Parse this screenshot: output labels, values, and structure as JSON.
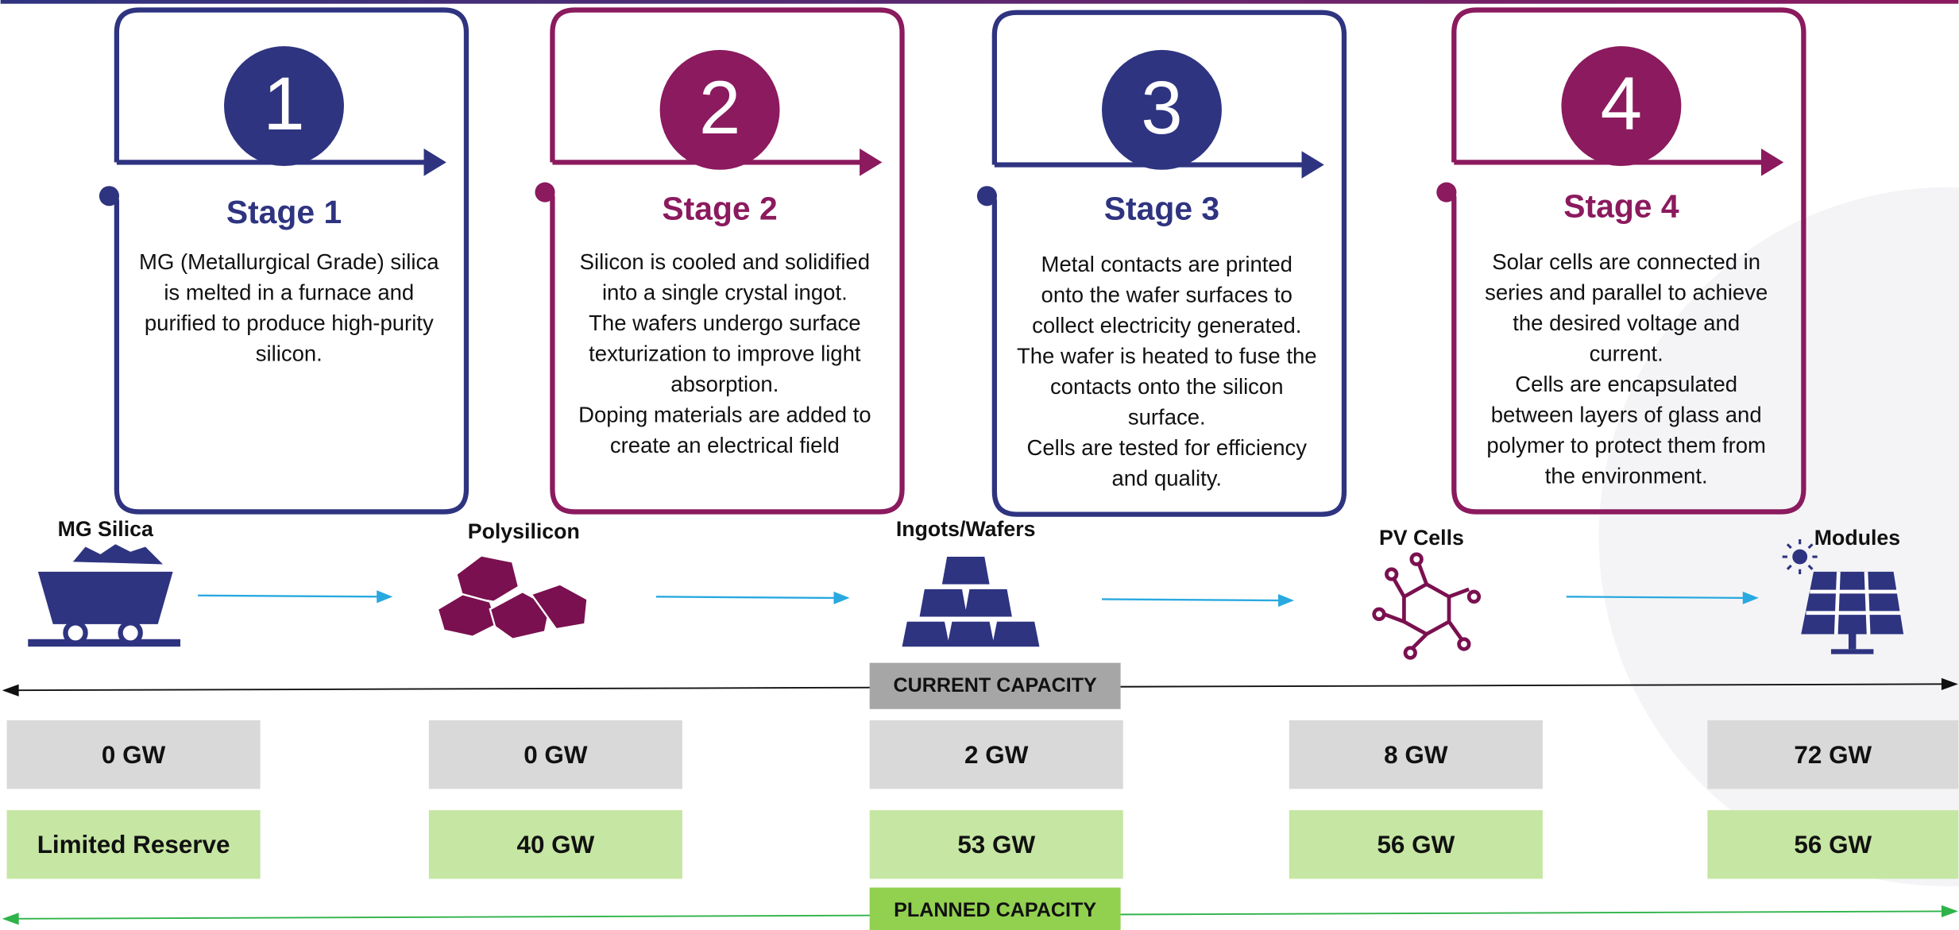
{
  "stages": [
    {
      "number": "1",
      "title": "Stage 1",
      "description": [
        "MG (Metallurgical Grade) silica",
        "is melted in a furnace and",
        "purified to produce high-purity",
        "silicon."
      ]
    },
    {
      "number": "2",
      "title": "Stage 2",
      "description": [
        "Silicon is cooled and solidified",
        "into a single crystal ingot.",
        "The wafers undergo surface",
        "texturization to improve light",
        "absorption.",
        "Doping materials are added to",
        "create an electrical field"
      ]
    },
    {
      "number": "3",
      "title": "Stage 3",
      "description": [
        "Metal contacts are printed",
        "onto the wafer surfaces to",
        "collect electricity generated.",
        "The wafer is heated to fuse the",
        "contacts onto the silicon",
        "surface.",
        "Cells are tested for efficiency",
        "and quality."
      ]
    },
    {
      "number": "4",
      "title": "Stage 4",
      "description": [
        "Solar cells are connected in",
        "series and parallel to achieve",
        "the desired voltage and",
        "current.",
        "Cells are encapsulated",
        "between layers of glass and",
        "polymer to protect them from",
        "the environment."
      ]
    }
  ],
  "nodes": [
    {
      "label": "MG Silica"
    },
    {
      "label": "Polysilicon"
    },
    {
      "label": "Ingots/Wafers"
    },
    {
      "label": "PV Cells"
    },
    {
      "label": "Modules"
    }
  ],
  "current_capacity": {
    "label": "CURRENT CAPACITY",
    "values": [
      "0 GW",
      "0 GW",
      "2 GW",
      "8 GW",
      "72 GW"
    ]
  },
  "planned_capacity": {
    "label": "PLANNED CAPACITY",
    "values": [
      "Limited Reserve",
      "40 GW",
      "53 GW",
      "56 GW",
      "56 GW"
    ]
  }
}
